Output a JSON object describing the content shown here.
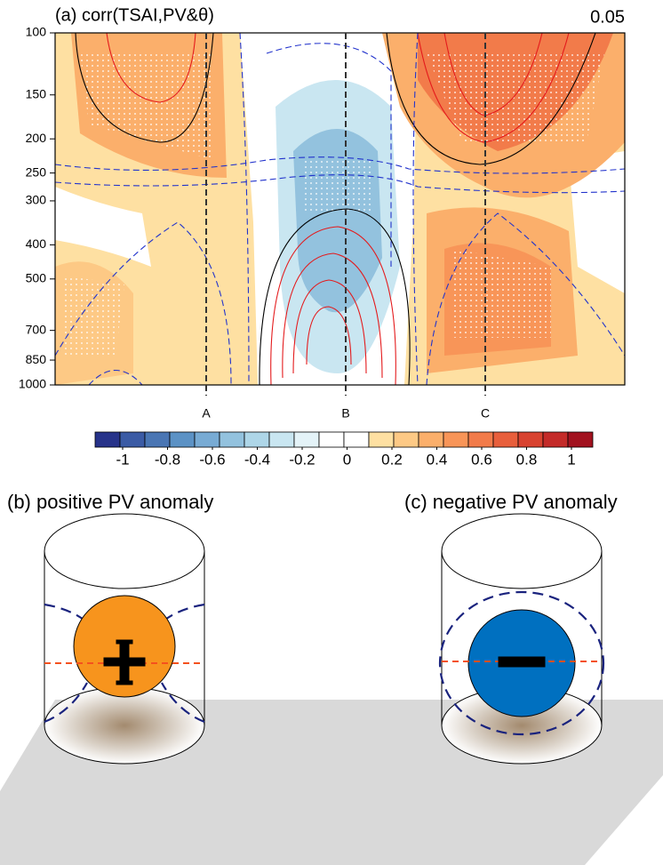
{
  "chart_data": {
    "type": "contour",
    "title": "(a) corr(TSAI,PV&θ)",
    "annotation": "0.05",
    "yticks": [
      100,
      150,
      200,
      250,
      300,
      400,
      500,
      700,
      850,
      1000
    ],
    "ylim": [
      100,
      1000
    ],
    "log_y": true,
    "markers": [
      "A",
      "B",
      "C"
    ],
    "colorbar": {
      "ticks": [
        -1,
        -0.8,
        -0.6,
        -0.4,
        -0.2,
        0,
        0.2,
        0.4,
        0.6,
        0.8,
        1
      ],
      "colors": [
        "#27338a",
        "#3b5ba5",
        "#4a76b4",
        "#5c92c5",
        "#78abd4",
        "#93c2de",
        "#aed6e8",
        "#c9e6f1",
        "#e4f3f8",
        "#ffffff",
        "#ffffff",
        "#fee0a2",
        "#fdc985",
        "#fbaf6b",
        "#f89558",
        "#f27b4a",
        "#e85f3c",
        "#d84330",
        "#c42b29",
        "#a2121f"
      ]
    }
  },
  "panels": [
    {
      "title": "(b) positive PV anomaly",
      "color": "#f7941d"
    },
    {
      "title": "(c) negative PV anomaly",
      "color": "#0070c0"
    }
  ]
}
